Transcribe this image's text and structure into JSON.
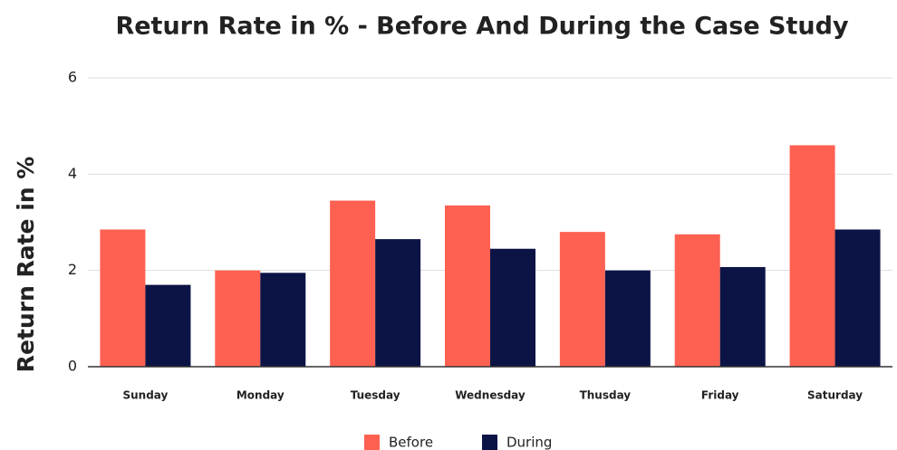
{
  "chart_data": {
    "type": "bar",
    "title": "Return Rate in % - Before And During the Case Study",
    "y_label": "Return Rate in %",
    "categories": [
      "Sunday",
      "Monday",
      "Tuesday",
      "Wednesday",
      "Thusday",
      "Friday",
      "Saturday"
    ],
    "series": [
      {
        "name": "Before",
        "color": "#fe6152",
        "values": [
          2.85,
          2.0,
          3.45,
          3.35,
          2.8,
          2.75,
          4.6
        ]
      },
      {
        "name": "During",
        "color": "#0c1446",
        "values": [
          1.7,
          1.95,
          2.65,
          2.45,
          2.0,
          2.07,
          2.85
        ]
      }
    ],
    "ylim": [
      0,
      6
    ],
    "yticks": [
      0,
      2,
      4,
      6
    ],
    "grid": true,
    "legend": "bottom"
  }
}
